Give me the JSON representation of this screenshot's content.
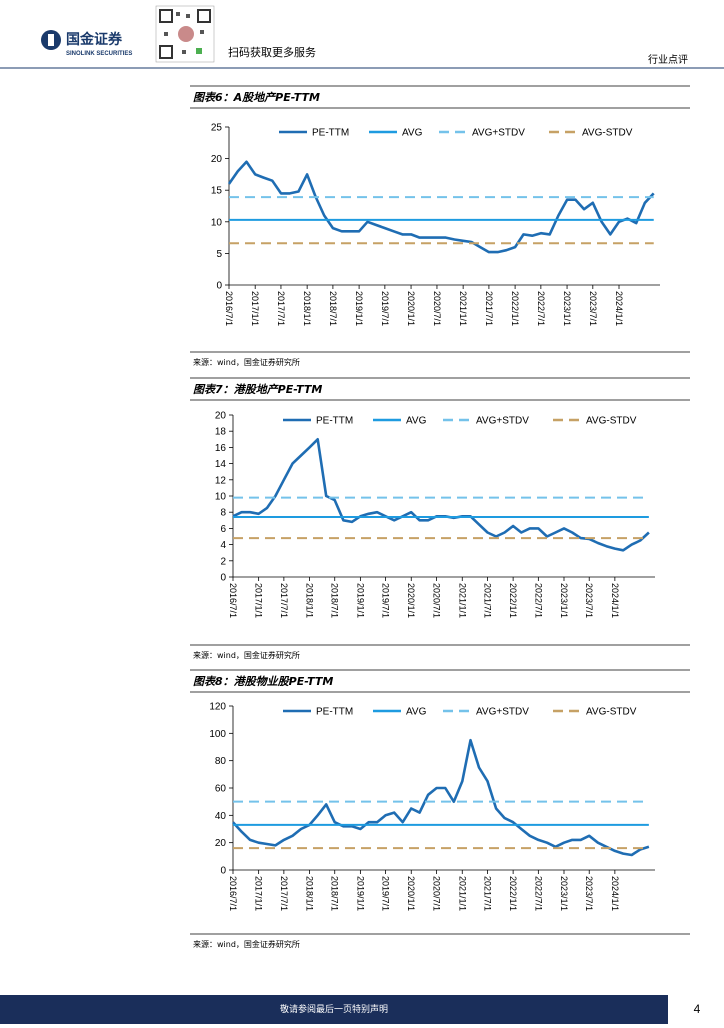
{
  "header": {
    "logo_cn": "国金证券",
    "logo_en": "SINOLINK SECURITIES",
    "qr_text": "扫码获取更多服务",
    "section": "行业点评"
  },
  "figures": [
    {
      "caption": "图表6：A股地产PE-TTM",
      "source": "来源：wind，国金证券研究所"
    },
    {
      "caption": "图表7：港股地产PE-TTM",
      "source": "来源：wind，国金证券研究所"
    },
    {
      "caption": "图表8：港股物业股PE-TTM",
      "source": "来源：wind，国金证券研究所"
    }
  ],
  "chart_data": [
    {
      "type": "line",
      "x": [
        "2016/7/1",
        "2016/9/1",
        "2016/11/1",
        "2017/1/1",
        "2017/3/1",
        "2017/5/1",
        "2017/7/1",
        "2017/9/1",
        "2017/11/1",
        "2018/1/1",
        "2018/3/1",
        "2018/5/1",
        "2018/7/1",
        "2018/9/1",
        "2018/11/1",
        "2019/1/1",
        "2019/3/1",
        "2019/5/1",
        "2019/7/1",
        "2019/9/1",
        "2019/11/1",
        "2020/1/1",
        "2020/3/1",
        "2020/5/1",
        "2020/7/1",
        "2020/9/1",
        "2020/11/1",
        "2021/1/1",
        "2021/3/1",
        "2021/5/1",
        "2021/7/1",
        "2021/9/1",
        "2021/11/1",
        "2022/1/1",
        "2022/3/1",
        "2022/5/1",
        "2022/7/1",
        "2022/9/1",
        "2022/11/1",
        "2023/1/1",
        "2023/3/1",
        "2023/5/1",
        "2023/7/1",
        "2023/9/1",
        "2023/11/1",
        "2024/1/1",
        "2024/3/1",
        "2024/5/1",
        "2024/7/1",
        "2024/9/1"
      ],
      "xlim": [
        "2016/7/1",
        "2024/10/15"
      ],
      "xticks": [
        "2016/7/1",
        "2017/1/1",
        "2017/7/1",
        "2018/1/1",
        "2018/7/1",
        "2019/1/1",
        "2019/7/1",
        "2020/1/1",
        "2020/7/1",
        "2021/1/1",
        "2021/7/1",
        "2022/1/1",
        "2022/7/1",
        "2023/1/1",
        "2023/7/1",
        "2024/1/1"
      ],
      "ylim": [
        0,
        25
      ],
      "yticks": [
        0,
        5,
        10,
        15,
        20,
        25
      ],
      "series": [
        {
          "name": "PE-TTM",
          "color": "#1f6db3",
          "values": [
            16,
            18,
            19.5,
            17.5,
            17,
            16.5,
            14.5,
            14.5,
            14.8,
            17.5,
            14,
            11,
            9,
            8.5,
            8.5,
            8.5,
            10,
            9.5,
            9,
            8.5,
            8,
            8,
            7.5,
            7.5,
            7.5,
            7.5,
            7.2,
            7,
            6.8,
            6,
            5.2,
            5.2,
            5.5,
            6,
            8,
            7.8,
            8.2,
            8,
            11,
            13.5,
            13.5,
            12,
            13,
            10,
            8,
            10,
            10.5,
            9.8,
            13,
            14.5
          ]
        },
        {
          "name": "AVG",
          "color": "#1e9be0",
          "value": 10.3,
          "style": "solid"
        },
        {
          "name": "AVG+STDV",
          "color": "#74c2ea",
          "value": 13.9,
          "style": "dashed"
        },
        {
          "name": "AVG-STDV",
          "color": "#c6a165",
          "value": 6.6,
          "style": "dashed"
        }
      ]
    },
    {
      "type": "line",
      "x": [
        "2016/7/1",
        "2016/9/1",
        "2016/11/1",
        "2017/1/1",
        "2017/3/1",
        "2017/5/1",
        "2017/7/1",
        "2017/9/1",
        "2017/11/1",
        "2018/1/1",
        "2018/3/1",
        "2018/5/1",
        "2018/7/1",
        "2018/9/1",
        "2018/11/1",
        "2019/1/1",
        "2019/3/1",
        "2019/5/1",
        "2019/7/1",
        "2019/9/1",
        "2019/11/1",
        "2020/1/1",
        "2020/3/1",
        "2020/5/1",
        "2020/7/1",
        "2020/9/1",
        "2020/11/1",
        "2021/1/1",
        "2021/3/1",
        "2021/5/1",
        "2021/7/1",
        "2021/9/1",
        "2021/11/1",
        "2022/1/1",
        "2022/3/1",
        "2022/5/1",
        "2022/7/1",
        "2022/9/1",
        "2022/11/1",
        "2023/1/1",
        "2023/3/1",
        "2023/5/1",
        "2023/7/1",
        "2023/9/1",
        "2023/11/1",
        "2024/1/1",
        "2024/3/1",
        "2024/5/1",
        "2024/7/1",
        "2024/9/1"
      ],
      "xlim": [
        "2016/7/1",
        "2024/10/15"
      ],
      "xticks": [
        "2016/7/1",
        "2017/1/1",
        "2017/7/1",
        "2018/1/1",
        "2018/7/1",
        "2019/1/1",
        "2019/7/1",
        "2020/1/1",
        "2020/7/1",
        "2021/1/1",
        "2021/7/1",
        "2022/1/1",
        "2022/7/1",
        "2023/1/1",
        "2023/7/1",
        "2024/1/1"
      ],
      "ylim": [
        0,
        20
      ],
      "yticks": [
        0,
        2,
        4,
        6,
        8,
        10,
        12,
        14,
        16,
        18,
        20
      ],
      "series": [
        {
          "name": "PE-TTM",
          "color": "#1f6db3",
          "values": [
            7.5,
            8,
            8,
            7.8,
            8.5,
            10,
            12,
            14,
            15,
            16,
            17,
            10,
            9.5,
            7,
            6.8,
            7.5,
            7.8,
            8,
            7.5,
            7,
            7.5,
            8,
            7,
            7,
            7.5,
            7.5,
            7.3,
            7.5,
            7.5,
            6.5,
            5.5,
            5,
            5.5,
            6.3,
            5.5,
            6,
            6,
            5,
            5.5,
            6,
            5.5,
            4.8,
            4.7,
            4.2,
            3.8,
            3.5,
            3.3,
            4,
            4.5,
            5.5
          ]
        },
        {
          "name": "AVG",
          "color": "#1e9be0",
          "value": 7.4,
          "style": "solid"
        },
        {
          "name": "AVG+STDV",
          "color": "#74c2ea",
          "value": 9.8,
          "style": "dashed"
        },
        {
          "name": "AVG-STDV",
          "color": "#c6a165",
          "value": 4.8,
          "style": "dashed"
        }
      ]
    },
    {
      "type": "line",
      "x": [
        "2016/7/1",
        "2016/9/1",
        "2016/11/1",
        "2017/1/1",
        "2017/3/1",
        "2017/5/1",
        "2017/7/1",
        "2017/9/1",
        "2017/11/1",
        "2018/1/1",
        "2018/3/1",
        "2018/5/1",
        "2018/7/1",
        "2018/9/1",
        "2018/11/1",
        "2019/1/1",
        "2019/3/1",
        "2019/5/1",
        "2019/7/1",
        "2019/9/1",
        "2019/11/1",
        "2020/1/1",
        "2020/3/1",
        "2020/5/1",
        "2020/7/1",
        "2020/9/1",
        "2020/11/1",
        "2021/1/1",
        "2021/3/1",
        "2021/5/1",
        "2021/7/1",
        "2021/9/1",
        "2021/11/1",
        "2022/1/1",
        "2022/3/1",
        "2022/5/1",
        "2022/7/1",
        "2022/9/1",
        "2022/11/1",
        "2023/1/1",
        "2023/3/1",
        "2023/5/1",
        "2023/7/1",
        "2023/9/1",
        "2023/11/1",
        "2024/1/1",
        "2024/3/1",
        "2024/5/1",
        "2024/7/1",
        "2024/9/1"
      ],
      "xlim": [
        "2016/7/1",
        "2024/10/15"
      ],
      "xticks": [
        "2016/7/1",
        "2017/1/1",
        "2017/7/1",
        "2018/1/1",
        "2018/7/1",
        "2019/1/1",
        "2019/7/1",
        "2020/1/1",
        "2020/7/1",
        "2021/1/1",
        "2021/7/1",
        "2022/1/1",
        "2022/7/1",
        "2023/1/1",
        "2023/7/1",
        "2024/1/1"
      ],
      "ylim": [
        0,
        120
      ],
      "yticks": [
        0,
        20,
        40,
        60,
        80,
        100,
        120
      ],
      "series": [
        {
          "name": "PE-TTM",
          "color": "#1f6db3",
          "values": [
            35,
            28,
            22,
            20,
            19,
            18,
            22,
            25,
            30,
            33,
            40,
            48,
            35,
            32,
            32,
            30,
            35,
            35,
            40,
            42,
            35,
            45,
            42,
            55,
            60,
            60,
            50,
            65,
            95,
            75,
            65,
            45,
            38,
            35,
            30,
            25,
            22,
            20,
            17,
            20,
            22,
            22,
            25,
            20,
            17,
            14,
            12,
            11,
            15,
            17
          ]
        },
        {
          "name": "AVG",
          "color": "#1e9be0",
          "value": 33,
          "style": "solid"
        },
        {
          "name": "AVG+STDV",
          "color": "#74c2ea",
          "value": 50,
          "style": "dashed"
        },
        {
          "name": "AVG-STDV",
          "color": "#c6a165",
          "value": 16,
          "style": "dashed"
        }
      ]
    }
  ],
  "footer": {
    "notice": "敬请参阅最后一页特别声明",
    "page": "4"
  }
}
